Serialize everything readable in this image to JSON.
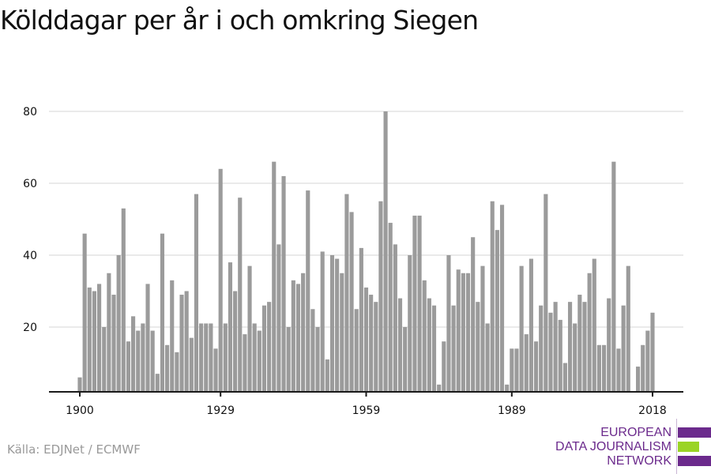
{
  "title": "Kölddagar per år i och omkring Siegen",
  "source": "Källa: EDJNet / ECMWF",
  "logo": {
    "lines": [
      "EUROPEAN",
      "DATA JOURNALISM",
      "NETWORK"
    ],
    "colors": {
      "purple": "#6b2a8c",
      "green": "#9ad425"
    }
  },
  "colors": {
    "bar": "#9b9b9b",
    "grid": "#e3e3e3",
    "axis": "#1a1a1a"
  },
  "chart_data": {
    "type": "bar",
    "title": "Kölddagar per år i och omkring Siegen",
    "xlabel": "",
    "ylabel": "",
    "ylim": [
      2,
      85
    ],
    "xlim": [
      1900,
      2018
    ],
    "grid": true,
    "yticks": [
      20,
      40,
      60,
      80
    ],
    "xticks": [
      1900,
      1929,
      1959,
      1989,
      2018
    ],
    "x": [
      1900,
      1901,
      1902,
      1903,
      1904,
      1905,
      1906,
      1907,
      1908,
      1909,
      1910,
      1911,
      1912,
      1913,
      1914,
      1915,
      1916,
      1917,
      1918,
      1919,
      1920,
      1921,
      1922,
      1923,
      1924,
      1925,
      1926,
      1927,
      1928,
      1929,
      1930,
      1931,
      1932,
      1933,
      1934,
      1935,
      1936,
      1937,
      1938,
      1939,
      1940,
      1941,
      1942,
      1943,
      1944,
      1945,
      1946,
      1947,
      1948,
      1949,
      1950,
      1951,
      1952,
      1953,
      1954,
      1955,
      1956,
      1957,
      1958,
      1959,
      1960,
      1961,
      1962,
      1963,
      1964,
      1965,
      1966,
      1967,
      1968,
      1969,
      1970,
      1971,
      1972,
      1973,
      1974,
      1975,
      1976,
      1977,
      1978,
      1979,
      1980,
      1981,
      1982,
      1983,
      1984,
      1985,
      1986,
      1987,
      1988,
      1989,
      1990,
      1991,
      1992,
      1993,
      1994,
      1995,
      1996,
      1997,
      1998,
      1999,
      2000,
      2001,
      2002,
      2003,
      2004,
      2005,
      2006,
      2007,
      2008,
      2009,
      2010,
      2011,
      2012,
      2013,
      2014,
      2015,
      2016,
      2017,
      2018
    ],
    "values": [
      6,
      46,
      31,
      30,
      32,
      20,
      35,
      29,
      40,
      53,
      16,
      23,
      19,
      21,
      32,
      19,
      7,
      46,
      15,
      33,
      13,
      29,
      30,
      17,
      57,
      21,
      21,
      21,
      14,
      64,
      21,
      38,
      30,
      56,
      18,
      37,
      21,
      19,
      26,
      27,
      66,
      43,
      62,
      20,
      33,
      32,
      35,
      58,
      25,
      20,
      41,
      11,
      40,
      39,
      35,
      57,
      52,
      25,
      42,
      31,
      29,
      27,
      55,
      80,
      49,
      43,
      28,
      20,
      40,
      51,
      51,
      33,
      28,
      26,
      4,
      16,
      40,
      26,
      36,
      35,
      35,
      45,
      27,
      37,
      21,
      55,
      47,
      54,
      4,
      14,
      14,
      37,
      18,
      39,
      16,
      26,
      57,
      24,
      27,
      22,
      10,
      27,
      21,
      29,
      27,
      35,
      39,
      15,
      15,
      28,
      66,
      14,
      26,
      37,
      2,
      9,
      15,
      19,
      24
    ]
  }
}
